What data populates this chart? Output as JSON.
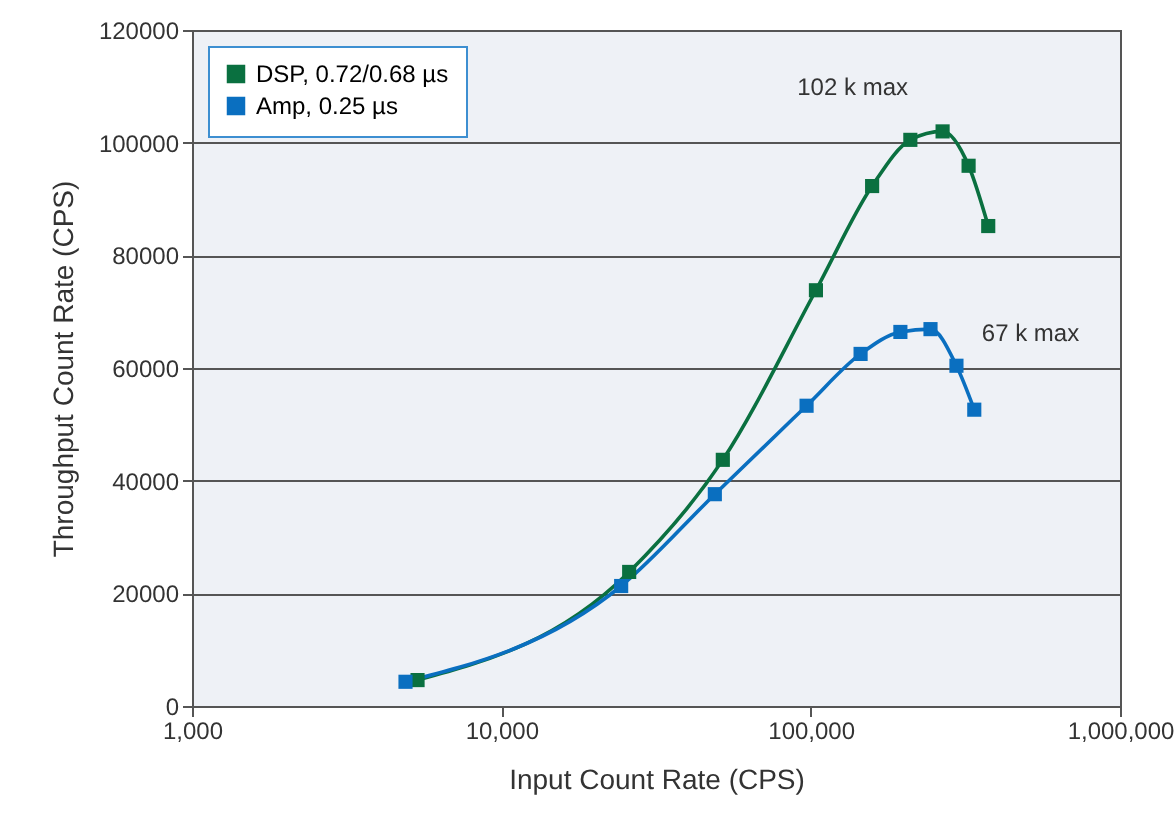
{
  "chart_data": {
    "type": "line",
    "xlabel": "Input Count Rate (CPS)",
    "ylabel": "Throughput Count Rate (CPS)",
    "log": "x",
    "xlim": [
      1000,
      1000000
    ],
    "xticks": [
      {
        "value": 1000,
        "label": "1,000"
      },
      {
        "value": 10000,
        "label": "10,000"
      },
      {
        "value": 100000,
        "label": "100,000"
      },
      {
        "value": 1000000,
        "label": "1,000,000"
      }
    ],
    "ylim": [
      0,
      120000
    ],
    "yticks": [
      0,
      20000,
      40000,
      60000,
      80000,
      100000,
      120000
    ],
    "grid": "y",
    "legend": "top left",
    "marker": "square",
    "line_style": "solid",
    "series": [
      {
        "name": "DSP, 0.72/0.68 µs",
        "color": "#0a7040",
        "x": [
          5360,
          25900,
          52000,
          104000,
          158000,
          210000,
          267000,
          324000,
          375000
        ],
        "values": [
          4600,
          23800,
          43700,
          73800,
          92300,
          100500,
          102000,
          95900,
          85200
        ]
      },
      {
        "name": "Amp, 0.25 µs",
        "color": "#0a6fc0",
        "x": [
          4900,
          24400,
          49000,
          97000,
          145000,
          195000,
          244000,
          296000,
          338000
        ],
        "values": [
          4300,
          21300,
          37600,
          53300,
          62500,
          66400,
          66900,
          60400,
          52600
        ]
      }
    ],
    "annotations": [
      "102 k max",
      "67 k max"
    ]
  }
}
